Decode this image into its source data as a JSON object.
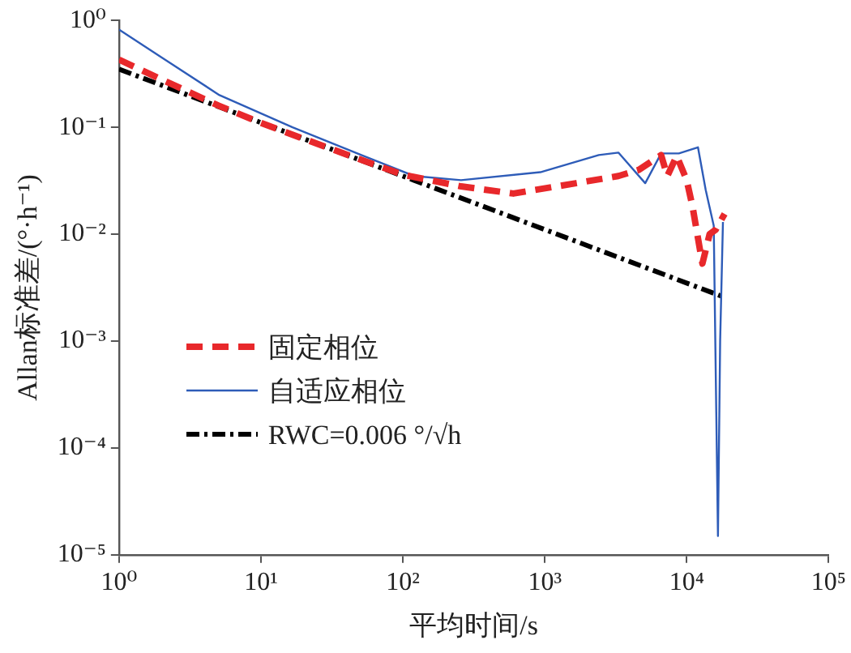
{
  "chart_data": {
    "type": "line",
    "xlabel": "平均时间/s",
    "ylabel": "Allan标准差/(°·h⁻¹)",
    "log": "xy",
    "grid": false,
    "legend": "bottom left",
    "marker": "none",
    "xlim": [
      1,
      100000
    ],
    "ylim": [
      1e-05,
      1
    ],
    "xticks": [
      {
        "value": 1,
        "label": "10⁰"
      },
      {
        "value": 10,
        "label": "10¹"
      },
      {
        "value": 100,
        "label": "10²"
      },
      {
        "value": 1000,
        "label": "10³"
      },
      {
        "value": 10000,
        "label": "10⁴"
      },
      {
        "value": 100000,
        "label": "10⁵"
      }
    ],
    "yticks": [
      {
        "value": 1e-05,
        "label": "10⁻⁵"
      },
      {
        "value": 0.0001,
        "label": "10⁻⁴"
      },
      {
        "value": 0.001,
        "label": "10⁻³"
      },
      {
        "value": 0.01,
        "label": "10⁻²"
      },
      {
        "value": 0.1,
        "label": "10⁻¹"
      },
      {
        "value": 1,
        "label": "10⁰"
      }
    ],
    "series": [
      {
        "name": "固定相位",
        "color": "#e8282b",
        "line_style": "dashed",
        "x": [
          1,
          2,
          5,
          10,
          20,
          50,
          100,
          257,
          600,
          1660,
          3300,
          4600,
          6600,
          7300,
          8500,
          10000,
          11000,
          12500,
          12900,
          14500,
          16000,
          18500
        ],
        "values": [
          0.43,
          0.28,
          0.16,
          0.11,
          0.078,
          0.05,
          0.036,
          0.028,
          0.024,
          0.03,
          0.035,
          0.04,
          0.055,
          0.035,
          0.054,
          0.032,
          0.018,
          0.0067,
          0.0053,
          0.01,
          0.011,
          0.0155
        ]
      },
      {
        "name": "自适应相位",
        "color": "#2e5cb8",
        "line_style": "solid",
        "x": [
          1,
          2,
          5.1,
          16.7,
          51,
          120,
          257,
          930,
          2400,
          3300,
          5100,
          6600,
          8800,
          12000,
          13600,
          15500,
          16600,
          17200,
          18000
        ],
        "values": [
          0.82,
          0.45,
          0.2,
          0.1,
          0.055,
          0.035,
          0.032,
          0.038,
          0.055,
          0.058,
          0.03,
          0.057,
          0.057,
          0.065,
          0.026,
          0.012,
          1.5e-05,
          0.001,
          0.013
        ]
      },
      {
        "name": "RWC=0.006 °/√h",
        "color": "#000000",
        "line_style": "dashdot",
        "x": [
          1,
          18000
        ],
        "values": [
          0.35,
          0.0026
        ]
      }
    ]
  }
}
